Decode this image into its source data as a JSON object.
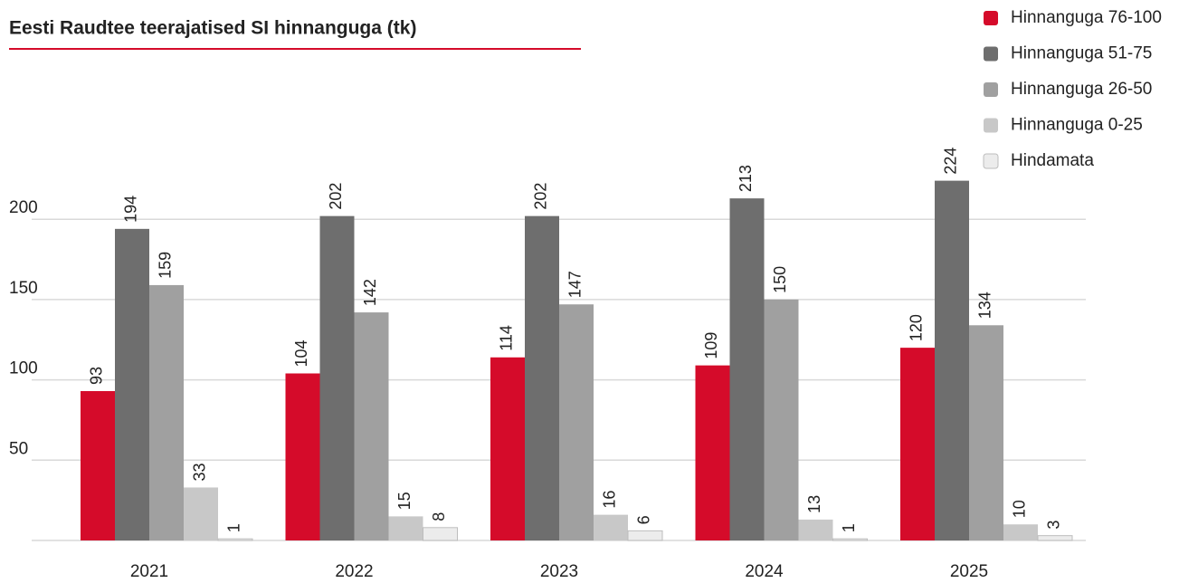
{
  "chart_data": {
    "type": "bar",
    "title": "Eesti Raudtee teerajatised SI hinnanguga (tk)",
    "categories": [
      "2021",
      "2022",
      "2023",
      "2024",
      "2025"
    ],
    "series": [
      {
        "name": "Hinnanguga 76-100",
        "color": "#d50b2a",
        "values": [
          93,
          104,
          114,
          109,
          120
        ]
      },
      {
        "name": "Hinnanguga 51-75",
        "color": "#6e6e6e",
        "values": [
          194,
          202,
          202,
          213,
          224
        ]
      },
      {
        "name": "Hinnanguga 26-50",
        "color": "#a0a0a0",
        "values": [
          159,
          142,
          147,
          150,
          134
        ]
      },
      {
        "name": "Hinnanguga 0-25",
        "color": "#c8c8c8",
        "values": [
          33,
          15,
          16,
          13,
          10
        ]
      },
      {
        "name": "Hindamata",
        "color": "#ececec",
        "values": [
          1,
          8,
          6,
          1,
          3
        ]
      }
    ],
    "ylim": [
      0,
      230
    ],
    "yticks": [
      50,
      100,
      150,
      200
    ],
    "grid": true,
    "legend": "top-right"
  }
}
